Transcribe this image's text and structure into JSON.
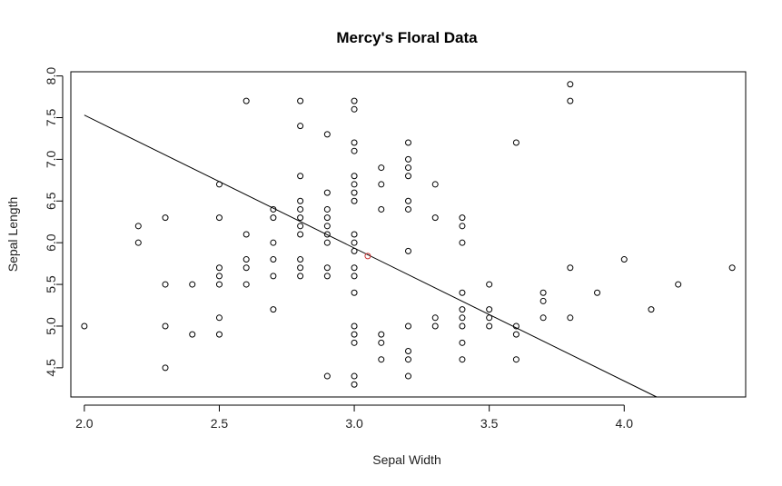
{
  "chart_data": {
    "type": "scatter",
    "title": "Mercy's Floral Data",
    "xlabel": "Sepal Width",
    "ylabel": "Sepal Length",
    "xlim": [
      1.95,
      4.45
    ],
    "ylim": [
      4.15,
      8.05
    ],
    "xticks": [
      2.0,
      2.5,
      3.0,
      3.5,
      4.0
    ],
    "xtick_labels": [
      "2.0",
      "2.5",
      "3.0",
      "3.5",
      "4.0"
    ],
    "yticks": [
      4.5,
      5.0,
      5.5,
      6.0,
      6.5,
      7.0,
      7.5,
      8.0
    ],
    "ytick_labels": [
      "4.5",
      "5.0",
      "5.5",
      "6.0",
      "6.5",
      "7.0",
      "7.5",
      "8.0"
    ],
    "grid": false,
    "colors": {
      "points": "#000000",
      "mean_point": "#cc3333",
      "fit_line": "#000000"
    },
    "points": [
      [
        2.0,
        5.0
      ],
      [
        2.2,
        6.2
      ],
      [
        2.2,
        6.0
      ],
      [
        2.3,
        6.3
      ],
      [
        2.3,
        5.5
      ],
      [
        2.3,
        5.0
      ],
      [
        2.3,
        4.5
      ],
      [
        2.4,
        5.5
      ],
      [
        2.4,
        4.9
      ],
      [
        2.5,
        6.7
      ],
      [
        2.5,
        6.3
      ],
      [
        2.5,
        5.7
      ],
      [
        2.5,
        5.6
      ],
      [
        2.5,
        5.5
      ],
      [
        2.5,
        5.1
      ],
      [
        2.5,
        4.9
      ],
      [
        2.6,
        7.7
      ],
      [
        2.6,
        6.1
      ],
      [
        2.6,
        5.8
      ],
      [
        2.6,
        5.7
      ],
      [
        2.6,
        5.5
      ],
      [
        2.7,
        6.4
      ],
      [
        2.7,
        6.3
      ],
      [
        2.7,
        6.0
      ],
      [
        2.7,
        5.8
      ],
      [
        2.7,
        5.6
      ],
      [
        2.7,
        5.2
      ],
      [
        2.8,
        7.7
      ],
      [
        2.8,
        7.4
      ],
      [
        2.8,
        6.8
      ],
      [
        2.8,
        6.5
      ],
      [
        2.8,
        6.4
      ],
      [
        2.8,
        6.3
      ],
      [
        2.8,
        6.2
      ],
      [
        2.8,
        6.1
      ],
      [
        2.8,
        5.8
      ],
      [
        2.8,
        5.7
      ],
      [
        2.8,
        5.6
      ],
      [
        2.9,
        7.3
      ],
      [
        2.9,
        6.6
      ],
      [
        2.9,
        6.4
      ],
      [
        2.9,
        6.3
      ],
      [
        2.9,
        6.2
      ],
      [
        2.9,
        6.1
      ],
      [
        2.9,
        6.0
      ],
      [
        2.9,
        5.7
      ],
      [
        2.9,
        5.6
      ],
      [
        2.9,
        4.4
      ],
      [
        3.0,
        7.7
      ],
      [
        3.0,
        7.6
      ],
      [
        3.0,
        7.2
      ],
      [
        3.0,
        7.1
      ],
      [
        3.0,
        6.8
      ],
      [
        3.0,
        6.7
      ],
      [
        3.0,
        6.6
      ],
      [
        3.0,
        6.5
      ],
      [
        3.0,
        6.1
      ],
      [
        3.0,
        6.0
      ],
      [
        3.0,
        5.9
      ],
      [
        3.0,
        5.7
      ],
      [
        3.0,
        5.6
      ],
      [
        3.0,
        5.4
      ],
      [
        3.0,
        5.0
      ],
      [
        3.0,
        4.9
      ],
      [
        3.0,
        4.8
      ],
      [
        3.0,
        4.4
      ],
      [
        3.0,
        4.3
      ],
      [
        3.1,
        6.9
      ],
      [
        3.1,
        6.7
      ],
      [
        3.1,
        6.4
      ],
      [
        3.1,
        4.9
      ],
      [
        3.1,
        4.8
      ],
      [
        3.1,
        4.6
      ],
      [
        3.2,
        7.2
      ],
      [
        3.2,
        7.0
      ],
      [
        3.2,
        6.9
      ],
      [
        3.2,
        6.8
      ],
      [
        3.2,
        6.5
      ],
      [
        3.2,
        6.4
      ],
      [
        3.2,
        5.9
      ],
      [
        3.2,
        5.0
      ],
      [
        3.2,
        4.7
      ],
      [
        3.2,
        4.6
      ],
      [
        3.2,
        4.4
      ],
      [
        3.3,
        6.7
      ],
      [
        3.3,
        6.3
      ],
      [
        3.3,
        5.1
      ],
      [
        3.3,
        5.0
      ],
      [
        3.4,
        6.3
      ],
      [
        3.4,
        6.2
      ],
      [
        3.4,
        6.0
      ],
      [
        3.4,
        5.4
      ],
      [
        3.4,
        5.2
      ],
      [
        3.4,
        5.1
      ],
      [
        3.4,
        5.0
      ],
      [
        3.4,
        4.8
      ],
      [
        3.4,
        4.6
      ],
      [
        3.5,
        5.5
      ],
      [
        3.5,
        5.2
      ],
      [
        3.5,
        5.1
      ],
      [
        3.5,
        5.0
      ],
      [
        3.6,
        7.2
      ],
      [
        3.6,
        5.0
      ],
      [
        3.6,
        4.9
      ],
      [
        3.6,
        4.6
      ],
      [
        3.7,
        5.4
      ],
      [
        3.7,
        5.3
      ],
      [
        3.7,
        5.1
      ],
      [
        3.8,
        7.9
      ],
      [
        3.8,
        7.7
      ],
      [
        3.8,
        5.7
      ],
      [
        3.8,
        5.1
      ],
      [
        3.9,
        5.4
      ],
      [
        4.0,
        5.8
      ],
      [
        4.1,
        5.2
      ],
      [
        4.2,
        5.5
      ],
      [
        4.4,
        5.7
      ]
    ],
    "mean_point": [
      3.05,
      5.84
    ],
    "fit_line": {
      "x": [
        2.0,
        4.12
      ],
      "y": [
        7.53,
        4.15
      ]
    }
  }
}
